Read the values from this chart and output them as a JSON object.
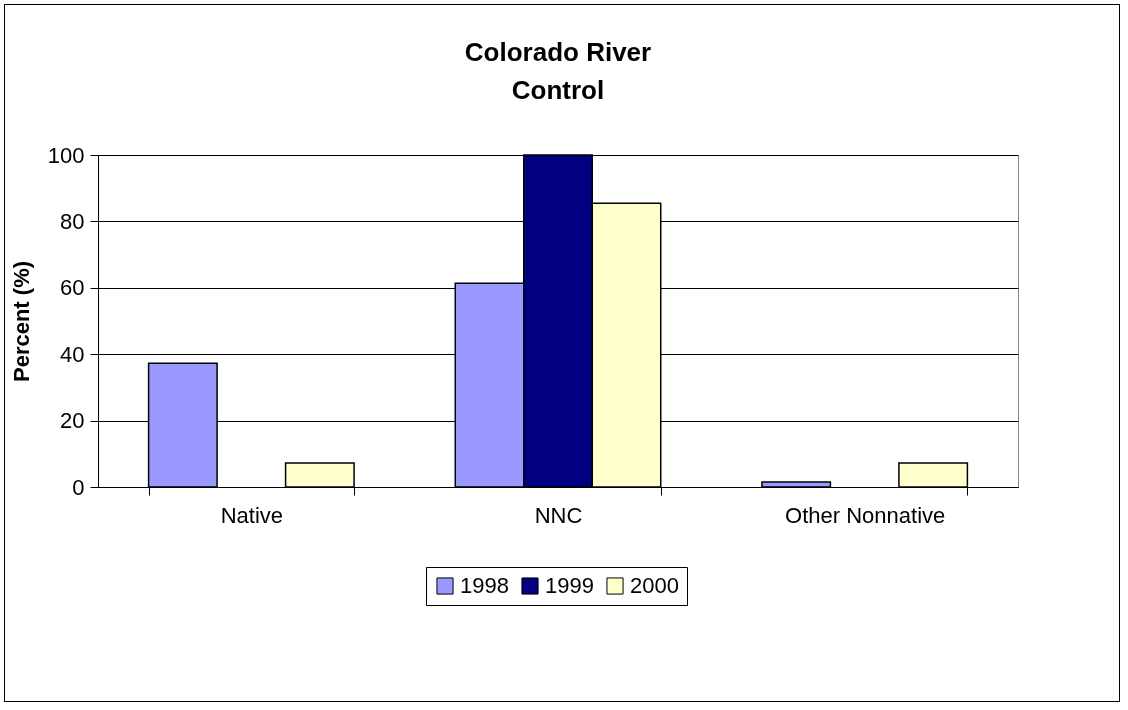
{
  "chart_data": {
    "type": "bar",
    "title": "Colorado River\nControl",
    "ylabel": "Percent (%)",
    "categories": [
      "Native",
      "NNC",
      "Other Nonnative"
    ],
    "series": [
      {
        "name": "1998",
        "color": "#9999ff",
        "values": [
          37.3,
          61.4,
          1.5
        ]
      },
      {
        "name": "1999",
        "color": "#000080",
        "values": [
          null,
          100,
          null
        ]
      },
      {
        "name": "2000",
        "color": "#ffffcc",
        "values": [
          7.2,
          85.5,
          7.2
        ]
      }
    ],
    "ylim": [
      0,
      100
    ],
    "yticks": [
      0,
      20,
      40,
      60,
      80,
      100
    ],
    "grid": "y",
    "legend": "bottom"
  }
}
